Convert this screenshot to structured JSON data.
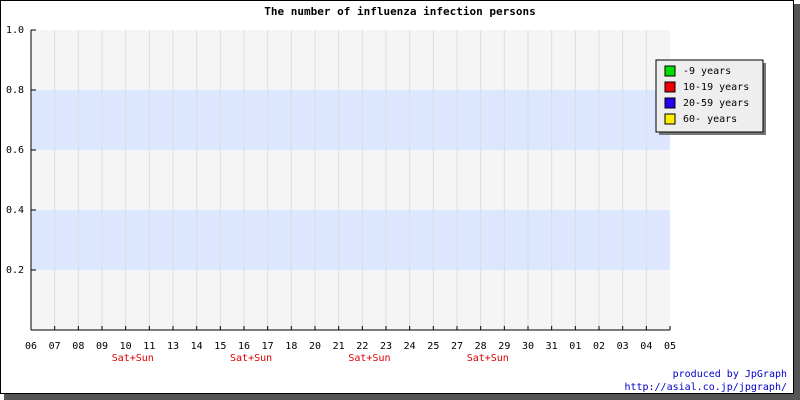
{
  "chart_data": {
    "type": "line",
    "title": "The number of influenza infection persons",
    "categories": [
      "06",
      "07",
      "08",
      "09",
      "10",
      "11",
      "13",
      "14",
      "15",
      "16",
      "17",
      "18",
      "20",
      "21",
      "22",
      "23",
      "24",
      "25",
      "27",
      "28",
      "29",
      "30",
      "31",
      "01",
      "02",
      "03",
      "04",
      "05"
    ],
    "weekend_labels": [
      null,
      null,
      null,
      null,
      "Sat+Sun",
      null,
      null,
      null,
      null,
      "Sat+Sun",
      null,
      null,
      null,
      null,
      "Sat+Sun",
      null,
      null,
      null,
      null,
      "Sat+Sun",
      null,
      null,
      null,
      null,
      null,
      null,
      null,
      null
    ],
    "series": [
      {
        "name": "-9 years",
        "color": "#00dd00",
        "values": [
          null,
          null,
          null,
          null,
          null,
          null,
          null,
          null,
          null,
          null,
          null,
          null,
          null,
          null,
          null,
          null,
          null,
          null,
          null,
          null,
          null,
          null,
          null,
          null,
          null,
          null,
          null,
          null
        ]
      },
      {
        "name": "10-19 years",
        "color": "#ee0000",
        "values": [
          null,
          null,
          null,
          null,
          null,
          null,
          null,
          null,
          null,
          null,
          null,
          null,
          null,
          null,
          null,
          null,
          null,
          null,
          null,
          null,
          null,
          null,
          null,
          null,
          null,
          null,
          null,
          null
        ]
      },
      {
        "name": "20-59 years",
        "color": "#2200ee",
        "values": [
          null,
          null,
          null,
          null,
          null,
          null,
          null,
          null,
          null,
          null,
          null,
          null,
          null,
          null,
          null,
          null,
          null,
          null,
          null,
          null,
          null,
          null,
          null,
          null,
          null,
          null,
          null,
          null
        ]
      },
      {
        "name": "60- years",
        "color": "#ffee00",
        "values": [
          null,
          null,
          null,
          null,
          null,
          null,
          null,
          null,
          null,
          null,
          null,
          null,
          null,
          null,
          null,
          null,
          null,
          null,
          null,
          null,
          null,
          null,
          null,
          null,
          null,
          null,
          null,
          null
        ]
      }
    ],
    "ylim": [
      0,
      1
    ],
    "yticks": [
      0.2,
      0.4,
      0.6,
      {
        "value": 1,
        "label": "1.0"
      },
      0.8
    ],
    "grid": true,
    "legend": "top-right",
    "credits": [
      "produced by JpGraph",
      "http://asial.co.jp/jpgraph/"
    ]
  }
}
